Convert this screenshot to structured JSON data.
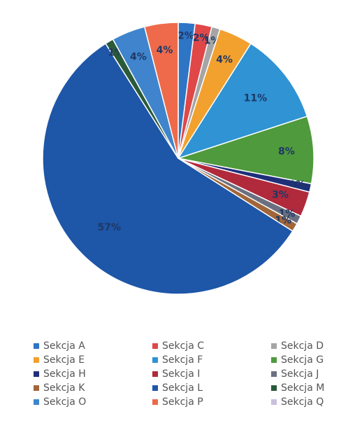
{
  "chart_data": {
    "type": "pie",
    "categories": [
      "Sekcja A",
      "Sekcja C",
      "Sekcja D",
      "Sekcja E",
      "Sekcja F",
      "Sekcja G",
      "Sekcja H",
      "Sekcja I",
      "Sekcja J",
      "Sekcja K",
      "Sekcja L",
      "Sekcja M",
      "Sekcja O",
      "Sekcja P",
      "Sekcja Q"
    ],
    "values": [
      2,
      2,
      1,
      4,
      11,
      8,
      1,
      3,
      1,
      1,
      57,
      1,
      4,
      4,
      0
    ],
    "value_labels": [
      "2%",
      "2%",
      "1%",
      "4%",
      "11%",
      "8%",
      "1%",
      "3%",
      "1%",
      "1%",
      "57%",
      "1%",
      "4%",
      "4%",
      null
    ],
    "colors": [
      "#2e75c6",
      "#e04848",
      "#a5a5a5",
      "#f2a02e",
      "#2f93d4",
      "#4f9a3c",
      "#1f2f7a",
      "#b02a3c",
      "#6a7080",
      "#a0663a",
      "#1e56a8",
      "#2a5a3a",
      "#3f84cc",
      "#ee6a4a",
      "#c8c0dc"
    ],
    "legend": "bottom"
  }
}
